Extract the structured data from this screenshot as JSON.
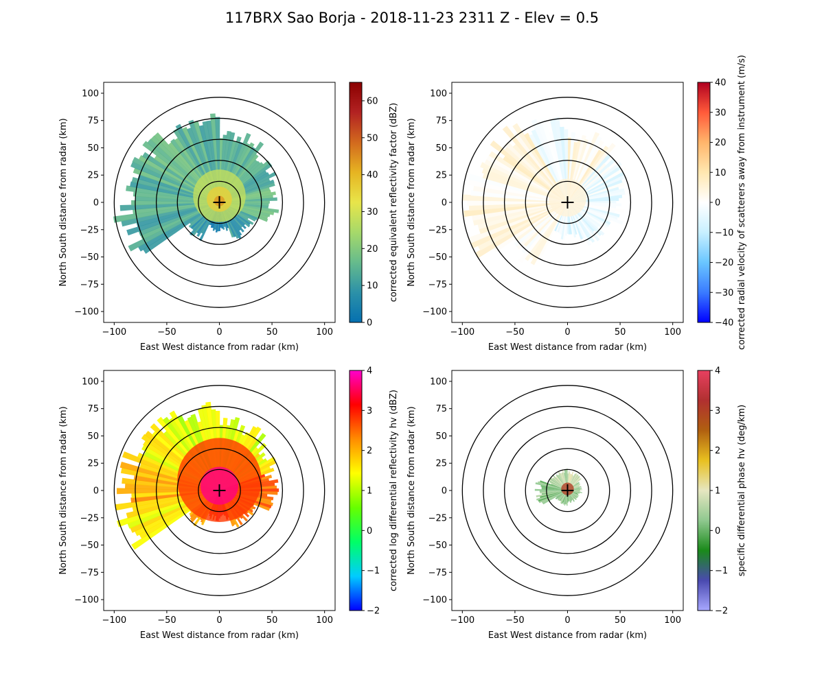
{
  "figure": {
    "title": "117BRX Sao Borja - 2018-11-23 2311 Z -  Elev = 0.5"
  },
  "chart_data": [
    {
      "type": "heatmap",
      "panel": "top-left",
      "field": "reflectivity",
      "xlabel": "East West distance from radar (km)",
      "ylabel": "North South distance from radar (km)",
      "xlim": [
        -110,
        110
      ],
      "ylim": [
        -110,
        110
      ],
      "xticks": [
        -100,
        -50,
        0,
        50,
        100
      ],
      "yticks": [
        -100,
        -75,
        -50,
        -25,
        0,
        25,
        50,
        75,
        100
      ],
      "range_rings_km": [
        20,
        40,
        60,
        80,
        100
      ],
      "colorbar": {
        "label": "corrected equivalent reflectivity factor (dBZ)",
        "range": [
          0,
          65
        ],
        "ticks": [
          0,
          10,
          20,
          30,
          40,
          50,
          60
        ],
        "colors": [
          "#0570b0",
          "#2c91a8",
          "#66bb8c",
          "#a6d96a",
          "#e8e54a",
          "#e6b422",
          "#d2691e",
          "#b22222",
          "#8b0000"
        ]
      },
      "echo_sectors": [
        {
          "az_start": 0,
          "az_end": 40,
          "max_range_km": 70,
          "value": 15
        },
        {
          "az_start": 40,
          "az_end": 70,
          "max_range_km": 62,
          "value": 14
        },
        {
          "az_start": 70,
          "az_end": 112,
          "max_range_km": 55,
          "value": 17
        },
        {
          "az_start": 112,
          "az_end": 160,
          "max_range_km": 38,
          "value": 10
        },
        {
          "az_start": 160,
          "az_end": 205,
          "max_range_km": 28,
          "value": 4
        },
        {
          "az_start": 205,
          "az_end": 235,
          "max_range_km": 40,
          "value": 9
        },
        {
          "az_start": 235,
          "az_end": 262,
          "max_range_km": 98,
          "value": 13
        },
        {
          "az_start": 262,
          "az_end": 292,
          "max_range_km": 95,
          "value": 14
        },
        {
          "az_start": 292,
          "az_end": 330,
          "max_range_km": 88,
          "value": 15
        },
        {
          "az_start": 330,
          "az_end": 360,
          "max_range_km": 82,
          "value": 14
        }
      ],
      "core_cells": [
        {
          "radius_km": 25,
          "value": 28
        },
        {
          "radius_km": 12,
          "value": 36
        },
        {
          "radius_km": 5,
          "value": 44
        }
      ]
    },
    {
      "type": "heatmap",
      "panel": "top-right",
      "field": "velocity",
      "xlabel": "East West distance from radar (km)",
      "ylabel": "North South distance from radar (km)",
      "xlim": [
        -110,
        110
      ],
      "ylim": [
        -110,
        110
      ],
      "xticks": [
        -100,
        -50,
        0,
        50,
        100
      ],
      "yticks": [
        -100,
        -75,
        -50,
        -25,
        0,
        25,
        50,
        75,
        100
      ],
      "range_rings_km": [
        20,
        40,
        60,
        80,
        100
      ],
      "colorbar": {
        "label": "corrected radial velocity of scatterers away from instrument (m/s)",
        "range": [
          -40,
          40
        ],
        "ticks": [
          -40,
          -30,
          -20,
          -10,
          0,
          10,
          20,
          30,
          40
        ],
        "colors": [
          "#0000ff",
          "#3a7bff",
          "#6ac6ff",
          "#c8f0ff",
          "#ffffff",
          "#ffe7b0",
          "#ffb56b",
          "#ff5a3a",
          "#b00020"
        ]
      },
      "echo_sectors": [
        {
          "az_start": 0,
          "az_end": 40,
          "max_range_km": 70,
          "value": 3
        },
        {
          "az_start": 40,
          "az_end": 70,
          "max_range_km": 62,
          "value": -3
        },
        {
          "az_start": 70,
          "az_end": 112,
          "max_range_km": 55,
          "value": -4
        },
        {
          "az_start": 112,
          "az_end": 160,
          "max_range_km": 45,
          "value": -4
        },
        {
          "az_start": 160,
          "az_end": 205,
          "max_range_km": 35,
          "value": -5
        },
        {
          "az_start": 205,
          "az_end": 235,
          "max_range_km": 70,
          "value": 3
        },
        {
          "az_start": 235,
          "az_end": 262,
          "max_range_km": 100,
          "value": 4
        },
        {
          "az_start": 262,
          "az_end": 292,
          "max_range_km": 100,
          "value": 4
        },
        {
          "az_start": 292,
          "az_end": 330,
          "max_range_km": 90,
          "value": 4
        },
        {
          "az_start": 330,
          "az_end": 360,
          "max_range_km": 82,
          "value": -4
        }
      ],
      "core_cells": [
        {
          "radius_km": 18,
          "value": 5
        }
      ]
    },
    {
      "type": "heatmap",
      "panel": "bottom-left",
      "field": "differential_reflectivity",
      "xlabel": "East West distance from radar (km)",
      "ylabel": "North South distance from radar (km)",
      "xlim": [
        -110,
        110
      ],
      "ylim": [
        -110,
        110
      ],
      "xticks": [
        -100,
        -50,
        0,
        50,
        100
      ],
      "yticks": [
        -100,
        -75,
        -50,
        -25,
        0,
        25,
        50,
        75,
        100
      ],
      "range_rings_km": [
        20,
        40,
        60,
        80,
        100
      ],
      "colorbar": {
        "label": "corrected log differential reflectivity hv (dBZ)",
        "range": [
          -2,
          4
        ],
        "ticks": [
          -2,
          -1,
          0,
          1,
          2,
          3,
          4
        ],
        "colors": [
          "#0000ff",
          "#00ccff",
          "#00ff66",
          "#66ff00",
          "#ffff00",
          "#ff8c00",
          "#ff0000",
          "#ff00cc"
        ]
      },
      "echo_sectors": [
        {
          "az_start": 0,
          "az_end": 40,
          "max_range_km": 70,
          "value": 1.3
        },
        {
          "az_start": 40,
          "az_end": 70,
          "max_range_km": 62,
          "value": 1.4
        },
        {
          "az_start": 70,
          "az_end": 112,
          "max_range_km": 55,
          "value": 2.6
        },
        {
          "az_start": 112,
          "az_end": 160,
          "max_range_km": 38,
          "value": 2.4
        },
        {
          "az_start": 160,
          "az_end": 205,
          "max_range_km": 28,
          "value": 3.2
        },
        {
          "az_start": 205,
          "az_end": 235,
          "max_range_km": 40,
          "value": 2.2
        },
        {
          "az_start": 235,
          "az_end": 262,
          "max_range_km": 98,
          "value": 1.6
        },
        {
          "az_start": 262,
          "az_end": 292,
          "max_range_km": 95,
          "value": 2.0
        },
        {
          "az_start": 292,
          "az_end": 330,
          "max_range_km": 88,
          "value": 1.4
        },
        {
          "az_start": 330,
          "az_end": 360,
          "max_range_km": 82,
          "value": 1.2
        }
      ],
      "core_cells": [
        {
          "radius_km": 40,
          "value": 2.8
        },
        {
          "radius_km": 18,
          "value": 3.7
        }
      ]
    },
    {
      "type": "heatmap",
      "panel": "bottom-right",
      "field": "specific_differential_phase",
      "xlabel": "East West distance from radar (km)",
      "ylabel": "North South distance from radar (km)",
      "xlim": [
        -110,
        110
      ],
      "ylim": [
        -110,
        110
      ],
      "xticks": [
        -100,
        -50,
        0,
        50,
        100
      ],
      "yticks": [
        -100,
        -75,
        -50,
        -25,
        0,
        25,
        50,
        75,
        100
      ],
      "range_rings_km": [
        20,
        40,
        60,
        80,
        100
      ],
      "colorbar": {
        "label": "specific differential phase hv (deg/km)",
        "range": [
          -2,
          4
        ],
        "ticks": [
          -2,
          -1,
          0,
          1,
          2,
          3,
          4
        ],
        "colors": [
          "#a8a8ff",
          "#4a4ab0",
          "#1a8a1a",
          "#8fc88f",
          "#e6e6c0",
          "#e8c020",
          "#b06010",
          "#b03030",
          "#e84060"
        ]
      },
      "echo_sectors": [
        {
          "az_start": 0,
          "az_end": 50,
          "max_range_km": 18,
          "value": 0.8
        },
        {
          "az_start": 50,
          "az_end": 100,
          "max_range_km": 14,
          "value": 0.4
        },
        {
          "az_start": 100,
          "az_end": 180,
          "max_range_km": 12,
          "value": 0.2
        },
        {
          "az_start": 180,
          "az_end": 240,
          "max_range_km": 14,
          "value": 0.3
        },
        {
          "az_start": 240,
          "az_end": 290,
          "max_range_km": 30,
          "value": 0.2
        },
        {
          "az_start": 290,
          "az_end": 360,
          "max_range_km": 20,
          "value": 0.6
        }
      ],
      "core_cells": [
        {
          "radius_km": 6,
          "value": 3.0
        }
      ]
    }
  ]
}
